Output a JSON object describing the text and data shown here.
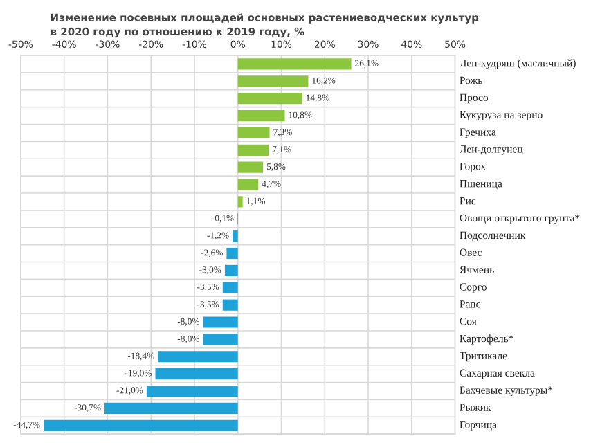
{
  "chart_data": {
    "type": "bar",
    "orientation": "horizontal",
    "title": "Изменение посевных площадей основных растениеводческих культур\nв 2020 году по отношению к 2019 году, %",
    "categories": [
      "Лен-кудряш (масличный)",
      "Рожь",
      "Просо",
      "Кукуруза на зерно",
      "Гречиха",
      "Лен-долгунец",
      "Горох",
      "Пшеница",
      "Рис",
      "Овощи открытого грунта*",
      "Подсолнечник",
      "Овес",
      "Ячмень",
      "Сорго",
      "Рапс",
      "Соя",
      "Картофель*",
      "Тритикале",
      "Сахарная свекла",
      "Бахчевые культуры*",
      "Рыжик",
      "Горчица"
    ],
    "values": [
      26.1,
      16.2,
      14.8,
      10.8,
      7.3,
      7.1,
      5.8,
      4.7,
      1.1,
      -0.1,
      -1.2,
      -2.6,
      -3.0,
      -3.5,
      -3.5,
      -8.0,
      -8.0,
      -18.4,
      -19.0,
      -21.0,
      -30.7,
      -44.7
    ],
    "value_labels": [
      "26,1%",
      "16,2%",
      "14,8%",
      "10,8%",
      "7,3%",
      "7,1%",
      "5,8%",
      "4,7%",
      "1,1%",
      "-0,1%",
      "-1,2%",
      "-2,6%",
      "-3,0%",
      "-3,5%",
      "-3,5%",
      "-8,0%",
      "-8,0%",
      "-18,4%",
      "-19,0%",
      "-21,0%",
      "-30,7%",
      "-44,7%"
    ],
    "colors": [
      "#8cc63e",
      "#8cc63e",
      "#8cc63e",
      "#8cc63e",
      "#8cc63e",
      "#8cc63e",
      "#8cc63e",
      "#8cc63e",
      "#8cc63e",
      "#1fa2d8",
      "#1fa2d8",
      "#1fa2d8",
      "#1fa2d8",
      "#1fa2d8",
      "#1fa2d8",
      "#1fa2d8",
      "#1fa2d8",
      "#1fa2d8",
      "#1fa2d8",
      "#1fa2d8",
      "#1fa2d8",
      "#1fa2d8"
    ],
    "xlim": [
      -50,
      50
    ],
    "xticks": [
      {
        "value": -50,
        "label": "-50%"
      },
      {
        "value": -40,
        "label": "-40%"
      },
      {
        "value": -30,
        "label": "-30%"
      },
      {
        "value": -20,
        "label": "-20%"
      },
      {
        "value": -10,
        "label": "-10%"
      },
      {
        "value": 0,
        "label": "0%"
      },
      {
        "value": 10,
        "label": "10%"
      },
      {
        "value": 20,
        "label": "20%"
      },
      {
        "value": 30,
        "label": "30%"
      },
      {
        "value": 40,
        "label": "40%"
      },
      {
        "value": 50,
        "label": "50%"
      }
    ],
    "grid": true
  }
}
